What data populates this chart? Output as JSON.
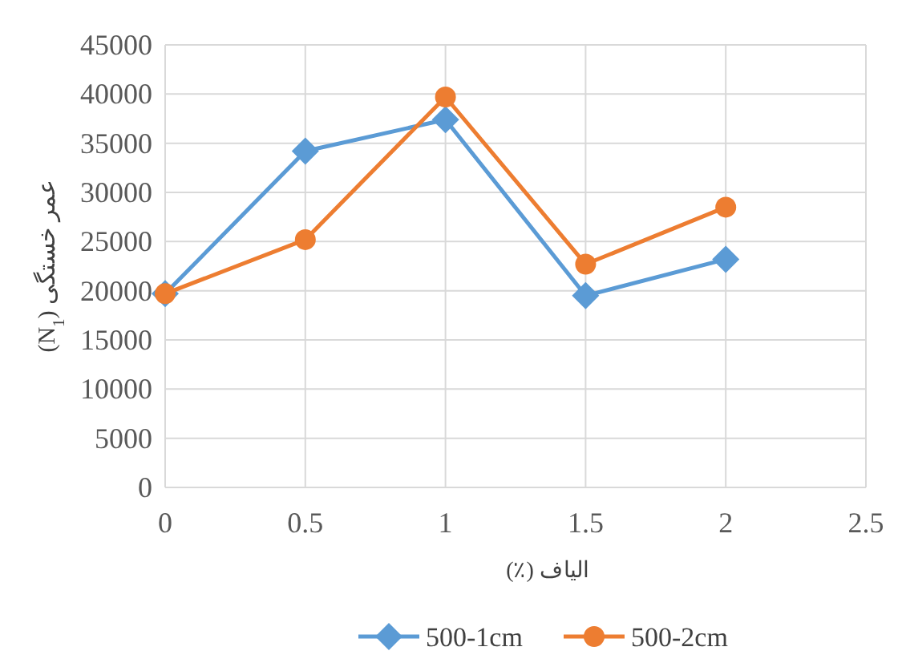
{
  "chart_data": {
    "type": "line",
    "xlabel": "الیاف (٪)",
    "ylabel": "عمر خستگی (N$_{1}$)",
    "x": [
      0,
      0.5,
      1,
      1.5,
      2
    ],
    "series": [
      {
        "name": "500-1cm",
        "color": "#5b9bd5",
        "marker": "diamond",
        "values": [
          19700,
          34200,
          37400,
          19500,
          23200
        ]
      },
      {
        "name": "500-2cm",
        "color": "#ed7d31",
        "marker": "circle",
        "values": [
          19700,
          25200,
          39700,
          22700,
          28500
        ]
      }
    ],
    "xlim": [
      0,
      2.5
    ],
    "xticks": [
      0,
      0.5,
      1,
      1.5,
      2,
      2.5
    ],
    "ylim": [
      0,
      45000
    ],
    "yticks": [
      0,
      5000,
      10000,
      15000,
      20000,
      25000,
      30000,
      35000,
      40000,
      45000
    ],
    "grid": true,
    "legend": "bottom",
    "line_style": "solid"
  }
}
